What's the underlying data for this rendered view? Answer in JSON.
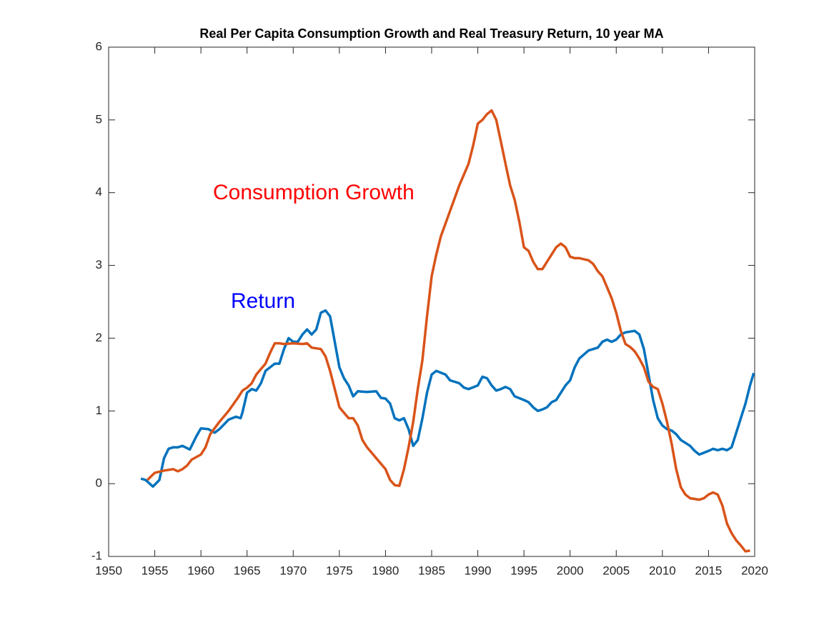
{
  "chart_data": {
    "type": "line",
    "title": "Real Per Capita Consumption Growth and Real Treasury Return, 10 year MA",
    "xlim": [
      1950,
      2020
    ],
    "xticks": [
      1950,
      1955,
      1960,
      1965,
      1970,
      1975,
      1980,
      1985,
      1990,
      1995,
      2000,
      2005,
      2010,
      2015,
      2020
    ],
    "ylim": [
      -1,
      6
    ],
    "yticks": [
      -1,
      0,
      1,
      2,
      3,
      4,
      5,
      6
    ],
    "grid": false,
    "annotations": [
      {
        "text": "Consumption Growth",
        "color": "#ff0000"
      },
      {
        "text": "Return",
        "color": "#0000ff"
      }
    ],
    "series": [
      {
        "name": "Return",
        "color": "#0072bd",
        "x": [
          1953.5,
          1954,
          1954.8,
          1955.5,
          1956,
          1956.5,
          1957,
          1957.5,
          1958,
          1958.8,
          1959.5,
          1960,
          1960.8,
          1961.5,
          1962,
          1963,
          1963.8,
          1964.3,
          1964.5,
          1965,
          1965.5,
          1966,
          1966.5,
          1967,
          1968,
          1968.5,
          1969,
          1969.5,
          1970,
          1970.5,
          1971,
          1971.5,
          1972,
          1972.5,
          1973,
          1973.5,
          1974,
          1974.5,
          1975,
          1975.5,
          1976,
          1976.5,
          1977,
          1978,
          1979,
          1979.5,
          1980,
          1980.5,
          1981,
          1981.5,
          1982,
          1982.5,
          1983,
          1983.5,
          1984,
          1984.5,
          1985,
          1985.5,
          1986.5,
          1987,
          1987.5,
          1988,
          1988.5,
          1989,
          1990,
          1990.5,
          1991,
          1991.5,
          1992,
          1992.5,
          1993,
          1993.5,
          1994,
          1995,
          1995.5,
          1996,
          1996.5,
          1997,
          1997.5,
          1998,
          1998.5,
          1999,
          1999.5,
          2000,
          2000.5,
          2001,
          2002,
          2002.5,
          2003,
          2003.5,
          2004,
          2004.5,
          2005,
          2005.5,
          2006,
          2007,
          2007.5,
          2008,
          2008.5,
          2009,
          2009.5,
          2010,
          2010.5,
          2011,
          2011.5,
          2012,
          2013,
          2013.5,
          2014,
          2015,
          2015.5,
          2016,
          2016.5,
          2017,
          2017.5,
          2018,
          2018.5,
          2019,
          2019.5,
          2019.9
        ],
        "values": [
          0.07,
          0.05,
          -0.04,
          0.05,
          0.35,
          0.48,
          0.5,
          0.5,
          0.52,
          0.47,
          0.65,
          0.76,
          0.75,
          0.7,
          0.75,
          0.88,
          0.92,
          0.9,
          0.98,
          1.25,
          1.3,
          1.28,
          1.38,
          1.55,
          1.65,
          1.65,
          1.85,
          2.0,
          1.95,
          1.95,
          2.05,
          2.12,
          2.05,
          2.12,
          2.35,
          2.38,
          2.3,
          1.95,
          1.6,
          1.45,
          1.35,
          1.2,
          1.27,
          1.26,
          1.27,
          1.18,
          1.17,
          1.1,
          0.9,
          0.87,
          0.9,
          0.75,
          0.52,
          0.6,
          0.9,
          1.25,
          1.5,
          1.55,
          1.5,
          1.42,
          1.4,
          1.38,
          1.32,
          1.3,
          1.35,
          1.47,
          1.45,
          1.35,
          1.28,
          1.3,
          1.33,
          1.3,
          1.2,
          1.15,
          1.12,
          1.05,
          1.0,
          1.02,
          1.05,
          1.12,
          1.15,
          1.25,
          1.35,
          1.42,
          1.6,
          1.72,
          1.83,
          1.85,
          1.87,
          1.95,
          1.98,
          1.95,
          1.98,
          2.05,
          2.08,
          2.1,
          2.05,
          1.85,
          1.5,
          1.15,
          0.9,
          0.8,
          0.75,
          0.73,
          0.68,
          0.6,
          0.52,
          0.45,
          0.4,
          0.45,
          0.48,
          0.46,
          0.48,
          0.46,
          0.5,
          0.7,
          0.9,
          1.1,
          1.35,
          1.52
        ]
      },
      {
        "name": "Consumption Growth",
        "color": "#d95319",
        "x": [
          1954.2,
          1955,
          1956,
          1957,
          1957.5,
          1958,
          1958.5,
          1959,
          1960,
          1960.5,
          1961,
          1962,
          1963,
          1964,
          1964.5,
          1965,
          1965.5,
          1966,
          1967,
          1967.5,
          1968,
          1968.5,
          1969,
          1970,
          1971,
          1971.5,
          1972,
          1973,
          1973.5,
          1974,
          1974.5,
          1975,
          1976,
          1976.5,
          1977,
          1977.5,
          1978,
          1979,
          1980,
          1980.5,
          1981,
          1981.5,
          1982,
          1982.5,
          1983,
          1983.5,
          1984,
          1984.5,
          1985,
          1985.5,
          1986,
          1987,
          1988,
          1988.5,
          1989,
          1989.5,
          1990,
          1990.5,
          1991,
          1991.5,
          1992,
          1992.5,
          1993,
          1993.5,
          1994,
          1994.5,
          1995,
          1995.5,
          1996,
          1996.5,
          1997,
          1997.5,
          1998,
          1998.5,
          1999,
          1999.5,
          2000,
          2000.5,
          2001,
          2002,
          2002.5,
          2003,
          2003.5,
          2004,
          2004.5,
          2005,
          2005.5,
          2006,
          2006.5,
          2007,
          2007.5,
          2008,
          2008.5,
          2009,
          2009.5,
          2010,
          2010.5,
          2011,
          2011.5,
          2012,
          2012.5,
          2013,
          2014,
          2014.5,
          2015,
          2015.5,
          2016,
          2016.5,
          2017,
          2017.5,
          2018,
          2018.5,
          2019,
          2019.5
        ],
        "values": [
          0.05,
          0.15,
          0.18,
          0.2,
          0.17,
          0.2,
          0.25,
          0.33,
          0.4,
          0.5,
          0.68,
          0.85,
          1.0,
          1.18,
          1.28,
          1.32,
          1.38,
          1.5,
          1.65,
          1.8,
          1.93,
          1.93,
          1.92,
          1.93,
          1.92,
          1.93,
          1.87,
          1.85,
          1.75,
          1.55,
          1.3,
          1.05,
          0.9,
          0.9,
          0.8,
          0.6,
          0.5,
          0.35,
          0.2,
          0.05,
          -0.02,
          -0.03,
          0.2,
          0.5,
          0.85,
          1.3,
          1.7,
          2.3,
          2.85,
          3.15,
          3.4,
          3.75,
          4.1,
          4.25,
          4.4,
          4.65,
          4.95,
          5.0,
          5.08,
          5.13,
          5.0,
          4.7,
          4.4,
          4.1,
          3.9,
          3.6,
          3.25,
          3.2,
          3.05,
          2.95,
          2.95,
          3.05,
          3.15,
          3.25,
          3.3,
          3.25,
          3.12,
          3.1,
          3.1,
          3.07,
          3.02,
          2.92,
          2.85,
          2.7,
          2.55,
          2.35,
          2.1,
          1.92,
          1.88,
          1.82,
          1.72,
          1.6,
          1.4,
          1.33,
          1.3,
          1.1,
          0.85,
          0.55,
          0.2,
          -0.05,
          -0.15,
          -0.2,
          -0.22,
          -0.2,
          -0.15,
          -0.12,
          -0.15,
          -0.3,
          -0.55,
          -0.68,
          -0.78,
          -0.85,
          -0.93,
          -0.92
        ]
      }
    ]
  }
}
